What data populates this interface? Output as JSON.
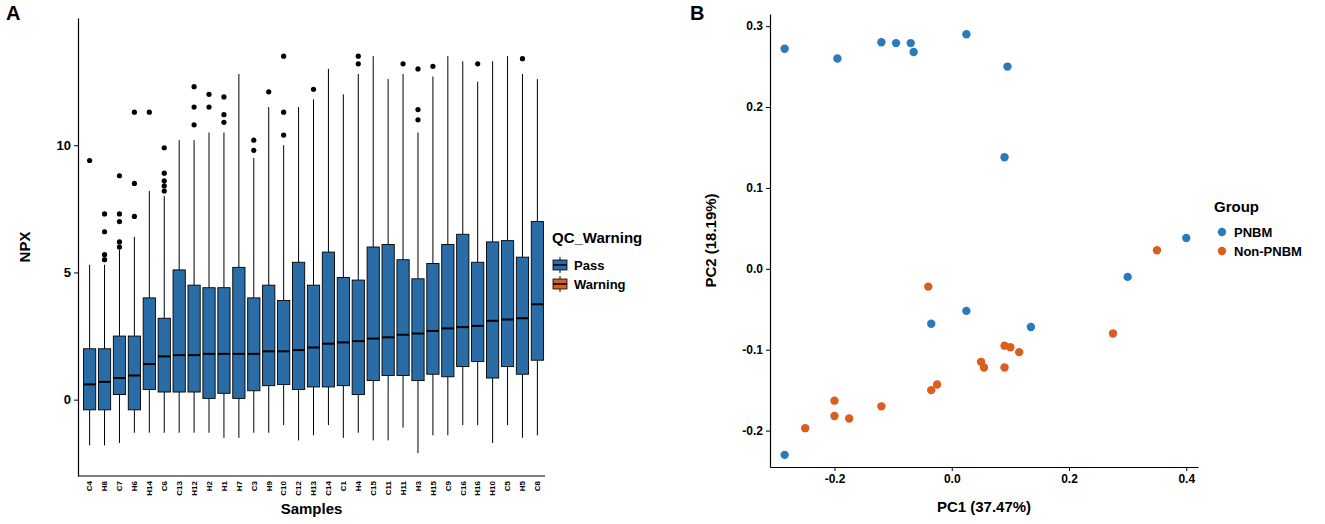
{
  "chart_data": [
    {
      "type": "box",
      "title": "A",
      "x_label": "Samples",
      "y_label": "NPX",
      "legend_title": "QC_Warning",
      "categories": [
        "C4",
        "H8",
        "C7",
        "H6",
        "H14",
        "C6",
        "C13",
        "H12",
        "H2",
        "H1",
        "H7",
        "C3",
        "H9",
        "C10",
        "C12",
        "H13",
        "C14",
        "C1",
        "H4",
        "C15",
        "C11",
        "H11",
        "H3",
        "H15",
        "C9",
        "C16",
        "H16",
        "H10",
        "C5",
        "H5",
        "C8"
      ],
      "ylim": [
        -3,
        15
      ],
      "yticks": [
        0,
        5,
        10
      ],
      "series": [
        {
          "name": "Pass",
          "color": "#2a6da6",
          "values": [
            {
              "min": -1.8,
              "q1": -0.4,
              "median": 0.6,
              "q3": 2.0,
              "max": 5.3,
              "outliers": [
                9.4
              ]
            },
            {
              "min": -1.8,
              "q1": -0.4,
              "median": 0.7,
              "q3": 2.0,
              "max": 5.3,
              "outliers": [
                5.5,
                5.7,
                6.6,
                7.3
              ]
            },
            {
              "min": -1.7,
              "q1": 0.2,
              "median": 0.85,
              "q3": 2.5,
              "max": 5.9,
              "outliers": [
                6.0,
                6.2,
                7.0,
                7.3,
                8.8
              ]
            },
            {
              "min": -1.3,
              "q1": -0.4,
              "median": 0.95,
              "q3": 2.5,
              "max": 6.4,
              "outliers": [
                7.2,
                8.5,
                11.3
              ]
            },
            {
              "min": -1.3,
              "q1": 0.4,
              "median": 1.4,
              "q3": 4.0,
              "max": 8.2,
              "outliers": [
                11.3
              ]
            },
            {
              "min": -1.3,
              "q1": 0.3,
              "median": 1.7,
              "q3": 3.2,
              "max": 8.0,
              "outliers": [
                8.2,
                8.4,
                8.6,
                8.9,
                9.9
              ]
            },
            {
              "min": -1.3,
              "q1": 0.3,
              "median": 1.75,
              "q3": 5.1,
              "max": 10.2,
              "outliers": []
            },
            {
              "min": -1.3,
              "q1": 0.3,
              "median": 1.75,
              "q3": 4.5,
              "max": 10.2,
              "outliers": [
                10.8,
                11.5,
                12.3
              ]
            },
            {
              "min": -1.3,
              "q1": 0.05,
              "median": 1.8,
              "q3": 4.4,
              "max": 10.5,
              "outliers": [
                11.5,
                12.0
              ]
            },
            {
              "min": -1.5,
              "q1": 0.25,
              "median": 1.8,
              "q3": 4.4,
              "max": 10.5,
              "outliers": [
                10.9,
                11.2,
                11.9
              ]
            },
            {
              "min": -1.5,
              "q1": 0.05,
              "median": 1.8,
              "q3": 5.2,
              "max": 12.8,
              "outliers": []
            },
            {
              "min": -1.3,
              "q1": 0.35,
              "median": 1.8,
              "q3": 4.0,
              "max": 9.5,
              "outliers": [
                9.8,
                10.2
              ]
            },
            {
              "min": -1.3,
              "q1": 0.55,
              "median": 1.9,
              "q3": 4.5,
              "max": 11.5,
              "outliers": [
                12.1
              ]
            },
            {
              "min": -1.0,
              "q1": 0.6,
              "median": 1.9,
              "q3": 3.9,
              "max": 10.0,
              "outliers": [
                10.4,
                11.3,
                13.5
              ]
            },
            {
              "min": -1.6,
              "q1": 0.4,
              "median": 1.95,
              "q3": 5.4,
              "max": 11.5,
              "outliers": []
            },
            {
              "min": -1.4,
              "q1": 0.5,
              "median": 2.05,
              "q3": 4.5,
              "max": 11.8,
              "outliers": [
                12.2
              ]
            },
            {
              "min": -1.0,
              "q1": 0.5,
              "median": 2.2,
              "q3": 5.8,
              "max": 13.0,
              "outliers": []
            },
            {
              "min": -1.5,
              "q1": 0.55,
              "median": 2.25,
              "q3": 4.8,
              "max": 12.0,
              "outliers": []
            },
            {
              "min": -1.3,
              "q1": 0.2,
              "median": 2.3,
              "q3": 4.7,
              "max": 12.8,
              "outliers": [
                13.2,
                13.5
              ]
            },
            {
              "min": -1.6,
              "q1": 0.75,
              "median": 2.4,
              "q3": 6.0,
              "max": 13.5,
              "outliers": []
            },
            {
              "min": -1.6,
              "q1": 0.95,
              "median": 2.45,
              "q3": 6.1,
              "max": 12.6,
              "outliers": []
            },
            {
              "min": -1.1,
              "q1": 0.95,
              "median": 2.55,
              "q3": 5.5,
              "max": 12.8,
              "outliers": [
                13.2
              ]
            },
            {
              "min": -2.1,
              "q1": 0.75,
              "median": 2.6,
              "q3": 4.75,
              "max": 10.5,
              "outliers": [
                11.0,
                11.4,
                13.0
              ]
            },
            {
              "min": -1.4,
              "q1": 1.0,
              "median": 2.7,
              "q3": 5.35,
              "max": 12.7,
              "outliers": [
                13.1
              ]
            },
            {
              "min": -1.4,
              "q1": 0.9,
              "median": 2.8,
              "q3": 6.1,
              "max": 13.5,
              "outliers": []
            },
            {
              "min": -1.0,
              "q1": 1.3,
              "median": 2.85,
              "q3": 6.5,
              "max": 13.3,
              "outliers": []
            },
            {
              "min": -1.0,
              "q1": 1.5,
              "median": 2.9,
              "q3": 5.4,
              "max": 12.5,
              "outliers": [
                13.2
              ]
            },
            {
              "min": -1.7,
              "q1": 0.85,
              "median": 3.1,
              "q3": 6.2,
              "max": 13.3,
              "outliers": []
            },
            {
              "min": -1.0,
              "q1": 1.3,
              "median": 3.15,
              "q3": 6.25,
              "max": 13.5,
              "outliers": []
            },
            {
              "min": -1.5,
              "q1": 1.0,
              "median": 3.2,
              "q3": 5.6,
              "max": 12.8,
              "outliers": [
                13.4
              ]
            },
            {
              "min": -1.4,
              "q1": 1.55,
              "median": 3.75,
              "q3": 7.0,
              "max": 12.6,
              "outliers": []
            }
          ]
        },
        {
          "name": "Warning",
          "color": "#d95f1c",
          "values": [
            null,
            null,
            null,
            null,
            null,
            null,
            null,
            null,
            null,
            null,
            null,
            null,
            null,
            null,
            null,
            null,
            null,
            null,
            null,
            null,
            null,
            null,
            null,
            null,
            null,
            null,
            null,
            null,
            null,
            null,
            null
          ]
        }
      ]
    },
    {
      "type": "scatter",
      "title": "B",
      "x_label": "PC1 (37.47%)",
      "y_label": "PC2 (18.19%)",
      "legend_title": "Group",
      "xlim": [
        -0.31,
        0.42
      ],
      "xticks": [
        -0.2,
        {
          "value": 0,
          "label": "0.0"
        },
        0.2,
        0.4
      ],
      "ylim": [
        -0.245,
        0.315
      ],
      "yticks": [
        -0.2,
        -0.1,
        {
          "value": 0,
          "label": "0.0"
        },
        0.1,
        0.2,
        0.3
      ],
      "series": [
        {
          "name": "PNBM",
          "color": "#2b7bba",
          "marker": "circle",
          "x": [
            -0.285,
            -0.195,
            -0.12,
            -0.095,
            -0.07,
            -0.065,
            0.025,
            0.095,
            0.09,
            0.025,
            -0.035,
            0.135,
            0.3,
            0.4,
            -0.285
          ],
          "values": [
            0.272,
            0.26,
            0.28,
            0.279,
            0.279,
            0.268,
            0.29,
            0.25,
            0.138,
            -0.052,
            -0.068,
            -0.072,
            -0.01,
            0.038,
            -0.23
          ]
        },
        {
          "name": "Non-PNBM",
          "color": "#d9601c",
          "marker": "circle",
          "x": [
            -0.04,
            0.35,
            0.275,
            0.05,
            0.055,
            0.09,
            0.1,
            0.115,
            0.09,
            -0.035,
            -0.025,
            -0.12,
            -0.2,
            -0.2,
            -0.175,
            -0.25
          ],
          "values": [
            -0.022,
            0.023,
            -0.08,
            -0.115,
            -0.122,
            -0.095,
            -0.097,
            -0.103,
            -0.122,
            -0.15,
            -0.143,
            -0.17,
            -0.163,
            -0.182,
            -0.185,
            -0.197
          ]
        }
      ]
    }
  ]
}
